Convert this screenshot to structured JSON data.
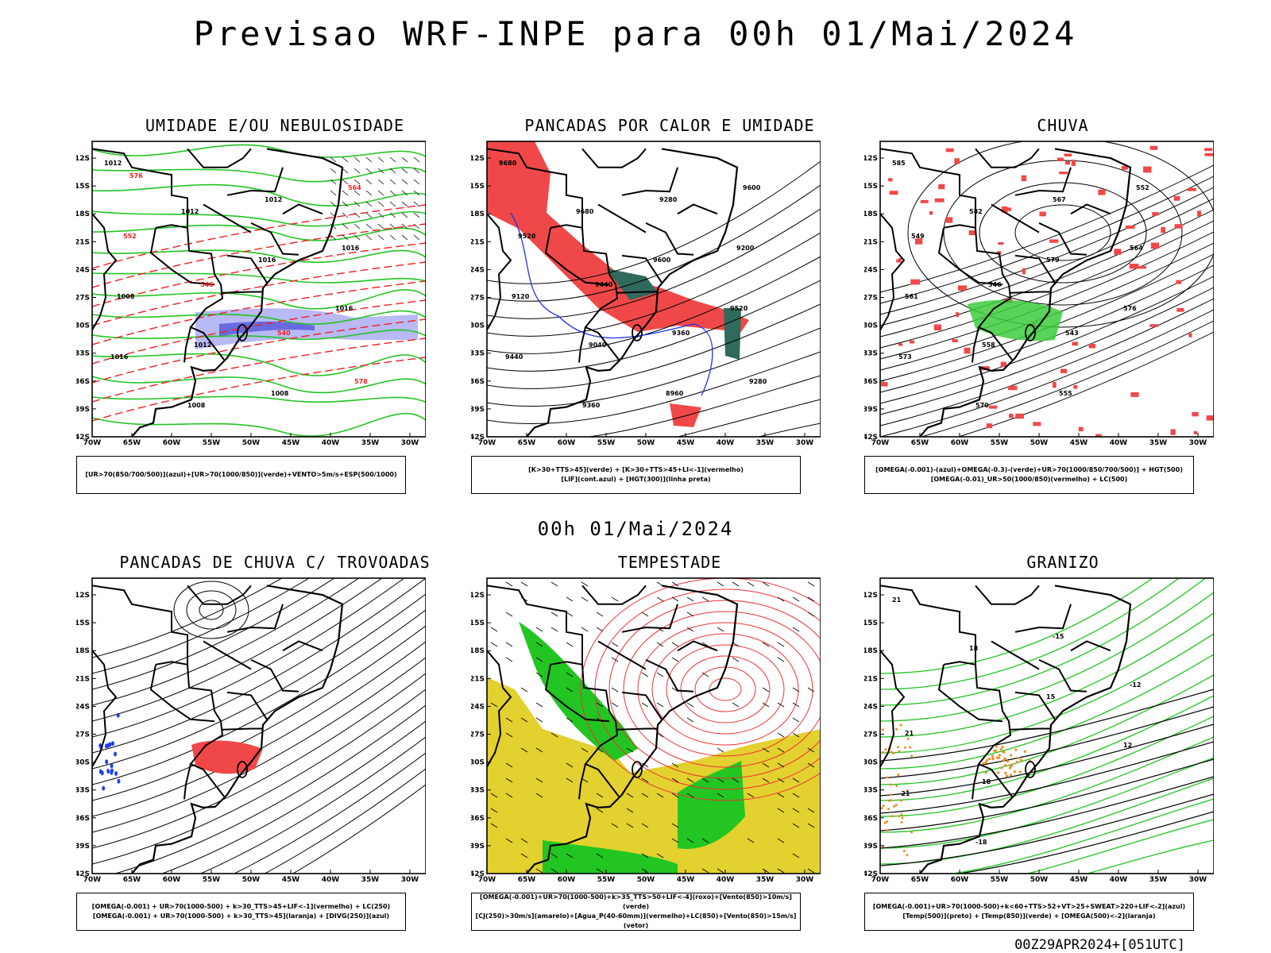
{
  "header": {
    "title": "Previsao WRF-INPE  para 00h 01/Mai/2024"
  },
  "middle": {
    "subtitle": "00h 01/Mai/2024"
  },
  "footer": {
    "run_tag": "00Z29APR2024+[051UTC]"
  },
  "axes": {
    "lat_labels": [
      "12S",
      "15S",
      "18S",
      "21S",
      "24S",
      "27S",
      "30S",
      "33S",
      "36S",
      "39S",
      "42S"
    ],
    "lon_labels": [
      "70W",
      "65W",
      "60W",
      "55W",
      "50W",
      "45W",
      "40W",
      "35W",
      "30W"
    ]
  },
  "panels": [
    {
      "title": "UMIDADE E/OU NEBULOSIDADE",
      "legend": [
        "[UR>70(850/700/500)](azul)+[UR>70(1000/850)](verde)+VENTO>5m/s+ESP(500/1000)"
      ],
      "labels": [
        "1012",
        "1012",
        "1016",
        "1016",
        "1016",
        "1008",
        "1012",
        "1016",
        "1008",
        "1012",
        "1008",
        "564",
        "552",
        "546",
        "540",
        "578",
        "576"
      ]
    },
    {
      "title": "PANCADAS POR CALOR E UMIDADE",
      "legend": [
        "[K>30+TTS>45](verde) + [K>30+TTS>45+LI<-1](vermelho)",
        "[LIF](cont.azul) + [HGT(300)](linha preta)"
      ],
      "labels": [
        "9680",
        "9680",
        "9600",
        "9520",
        "9440",
        "9360",
        "9280",
        "9200",
        "9120",
        "9040",
        "8960",
        "9600",
        "9520",
        "9440",
        "9360",
        "9280"
      ]
    },
    {
      "title": "CHUVA",
      "legend": [
        "[OMEGA(-0.001)-(azul)+OMEGA(-0.3)-(verde)+UR>70(1000/850/700/500)] + HGT(500)",
        "[OMEGA(-0.01)_UR>50(1000/850)(vermelho) + LC(500)"
      ],
      "labels": [
        "585",
        "582",
        "579",
        "576",
        "573",
        "570",
        "567",
        "564",
        "561",
        "558",
        "555",
        "552",
        "549",
        "546",
        "543"
      ]
    },
    {
      "title": "PANCADAS DE CHUVA C/ TROVOADAS",
      "legend": [
        "[OMEGA(-0.001) + UR>70(1000-500) + k>30_TTS>45+LIF<-1](vermelho) + LC(250)",
        "[OMEGA(-0.001) + UR>70(1000-500) + k>30_TTS>45](laranja) + [DIVG(250)](azul)"
      ],
      "labels": []
    },
    {
      "title": "TEMPESTADE",
      "legend": [
        "[OMEGA(-0.001)+UR>70(1000-500)+k>35_TTS>50+LIF<-4](roxo)+[Vento(850)>10m/s](verde)",
        "[CJ(250)>30m/s](amarelo)+[Agua_P(40-60mm)](vermelho)+LC(850)+[Vento(850)>15m/s](vetor)"
      ],
      "labels": []
    },
    {
      "title": "GRANIZO",
      "legend": [
        "[OMEGA(-0.001)+UR>70(1000-500)+k<60+TTS>52+VT>25+SWEAT>220+LIF<-2](azul)",
        "[Temp(500)](preto) + [Temp(850)](verde) + [OMEGA(500)<-2](laranja)"
      ],
      "labels": [
        "21",
        "18",
        "15",
        "12",
        "-21",
        "-18",
        "-15",
        "-12",
        "21",
        "18"
      ]
    }
  ]
}
